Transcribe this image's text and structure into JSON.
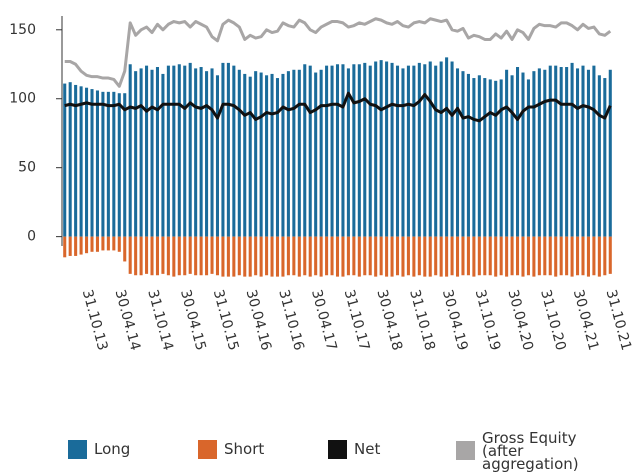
{
  "chart_data": {
    "type": "bar",
    "categories": [
      null,
      null,
      null,
      null,
      "31.10.13",
      null,
      null,
      null,
      null,
      null,
      "30.04.14",
      null,
      null,
      null,
      null,
      null,
      "31.10.14",
      null,
      null,
      null,
      null,
      null,
      "30.04.15",
      null,
      null,
      null,
      null,
      null,
      "31.10.15",
      null,
      null,
      null,
      null,
      null,
      "30.04.16",
      null,
      null,
      null,
      null,
      null,
      "31.10.16",
      null,
      null,
      null,
      null,
      null,
      "30.04.17",
      null,
      null,
      null,
      null,
      null,
      "31.10.17",
      null,
      null,
      null,
      null,
      null,
      "30.04.18",
      null,
      null,
      null,
      null,
      null,
      "31.10.18",
      null,
      null,
      null,
      null,
      null,
      "30.04.19",
      null,
      null,
      null,
      null,
      null,
      "31.10.19",
      null,
      null,
      null,
      null,
      null,
      "30.04.20",
      null,
      null,
      null,
      null,
      null,
      "31.10.20",
      null,
      null,
      null,
      null,
      null,
      "30.04.21",
      null,
      null,
      null,
      null,
      null,
      "31.10.21"
    ],
    "series": [
      {
        "name": "Long",
        "type": "bar",
        "color": "#1a6b9a",
        "values": [
          111,
          112,
          110,
          109,
          108,
          107,
          106,
          105,
          105,
          105,
          104,
          104,
          125,
          120,
          122,
          124,
          121,
          123,
          118,
          124,
          124,
          125,
          124,
          126,
          122,
          123,
          120,
          122,
          117,
          126,
          126,
          124,
          121,
          118,
          116,
          120,
          119,
          117,
          118,
          115,
          118,
          120,
          121,
          121,
          125,
          124,
          119,
          121,
          124,
          124,
          125,
          125,
          122,
          125,
          125,
          126,
          124,
          127,
          128,
          127,
          126,
          124,
          122,
          124,
          124,
          126,
          125,
          127,
          124,
          127,
          130,
          127,
          122,
          120,
          118,
          115,
          117,
          115,
          114,
          113,
          114,
          121,
          117,
          123,
          119,
          114,
          120,
          122,
          121,
          124,
          124,
          123,
          123,
          126,
          122,
          124,
          121,
          124,
          117,
          115,
          121
        ]
      },
      {
        "name": "Short",
        "type": "bar",
        "color": "#d9662b",
        "values": [
          -15,
          -14,
          -14,
          -13,
          -12,
          -11,
          -11,
          -10,
          -10,
          -10,
          -11,
          -18,
          -27,
          -28,
          -28,
          -27,
          -28,
          -28,
          -27,
          -28,
          -29,
          -28,
          -28,
          -27,
          -28,
          -28,
          -28,
          -27,
          -28,
          -29,
          -29,
          -29,
          -28,
          -29,
          -29,
          -28,
          -29,
          -28,
          -29,
          -29,
          -29,
          -28,
          -28,
          -29,
          -28,
          -29,
          -28,
          -29,
          -28,
          -28,
          -29,
          -29,
          -28,
          -28,
          -29,
          -28,
          -28,
          -29,
          -28,
          -29,
          -29,
          -28,
          -29,
          -28,
          -29,
          -28,
          -29,
          -29,
          -28,
          -29,
          -29,
          -28,
          -29,
          -28,
          -28,
          -29,
          -28,
          -28,
          -28,
          -29,
          -28,
          -29,
          -28,
          -28,
          -29,
          -28,
          -29,
          -28,
          -28,
          -28,
          -29,
          -28,
          -28,
          -29,
          -28,
          -28,
          -29,
          -28,
          -29,
          -28,
          -27
        ]
      },
      {
        "name": "Net",
        "type": "line",
        "color": "#111111",
        "values": [
          95,
          96,
          95,
          96,
          97,
          96,
          96,
          96,
          95,
          95,
          96,
          92,
          94,
          93,
          95,
          91,
          94,
          92,
          96,
          96,
          96,
          96,
          93,
          97,
          94,
          93,
          95,
          92,
          86,
          96,
          96,
          95,
          92,
          88,
          90,
          85,
          87,
          90,
          89,
          90,
          94,
          92,
          93,
          96,
          96,
          90,
          92,
          95,
          95,
          96,
          96,
          94,
          104,
          97,
          98,
          100,
          96,
          95,
          92,
          94,
          96,
          95,
          95,
          96,
          95,
          98,
          103,
          98,
          92,
          90,
          93,
          88,
          93,
          86,
          87,
          85,
          84,
          87,
          90,
          88,
          92,
          94,
          90,
          85,
          91,
          94,
          94,
          96,
          98,
          99,
          99,
          96,
          96,
          96,
          93,
          95,
          94,
          92,
          88,
          86,
          95
        ]
      },
      {
        "name": "Gross Equity (after aggregation)",
        "type": "line",
        "color": "#a8a6a6",
        "values": [
          127,
          127,
          125,
          120,
          117,
          116,
          116,
          115,
          115,
          114,
          109,
          120,
          155,
          146,
          150,
          152,
          148,
          154,
          150,
          154,
          156,
          155,
          156,
          152,
          156,
          154,
          152,
          145,
          142,
          154,
          157,
          155,
          152,
          143,
          146,
          144,
          145,
          150,
          148,
          149,
          155,
          153,
          152,
          157,
          155,
          150,
          148,
          152,
          154,
          156,
          156,
          155,
          152,
          153,
          155,
          154,
          156,
          158,
          157,
          155,
          154,
          156,
          153,
          152,
          155,
          156,
          155,
          158,
          157,
          156,
          157,
          150,
          149,
          151,
          144,
          146,
          145,
          143,
          143,
          147,
          144,
          149,
          143,
          150,
          148,
          143,
          151,
          154,
          153,
          153,
          152,
          155,
          155,
          153,
          150,
          154,
          151,
          152,
          147,
          146,
          149
        ]
      }
    ],
    "ylim": [
      -30,
      160
    ],
    "yticks": [
      0,
      50,
      100,
      150
    ]
  }
}
